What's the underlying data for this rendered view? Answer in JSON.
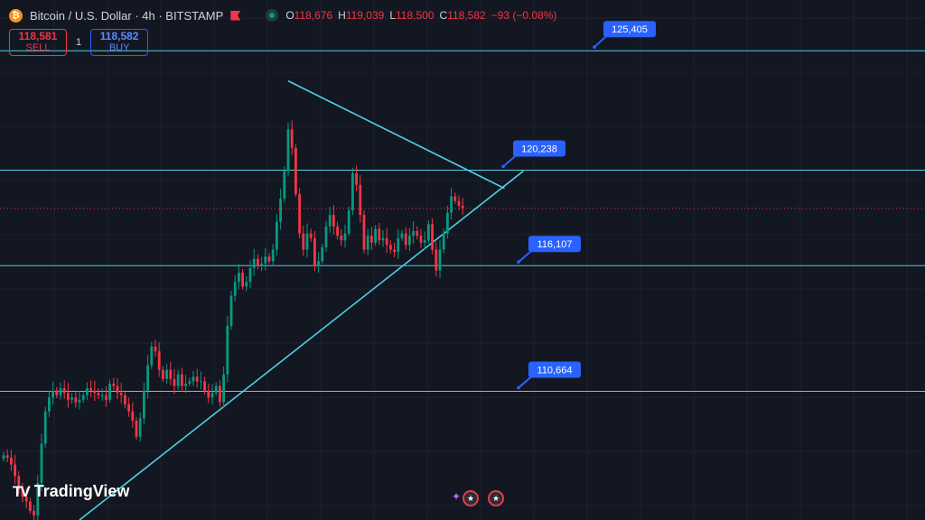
{
  "header": {
    "coin_icon": "₿",
    "symbol_title": "Bitcoin / U.S. Dollar · 4h · BITSTAMP",
    "ohlc": {
      "o_label": "O",
      "o_value": "118,676",
      "h_label": "H",
      "h_value": "119,039",
      "l_label": "L",
      "l_value": "118,500",
      "c_label": "C",
      "c_value": "118,582",
      "change": "−93 (−0.08%)"
    }
  },
  "trade": {
    "sell_price": "118,581",
    "sell_label": "SELL",
    "spread": "1",
    "buy_price": "118,582",
    "buy_label": "BUY"
  },
  "branding": {
    "logo_mark": "TV",
    "logo_text": "TradingView"
  },
  "events": {
    "spark": "✦",
    "flag1": "★",
    "flag2": "★"
  },
  "colors": {
    "background": "#131722",
    "up": "#089981",
    "down": "#f23645",
    "level_line": "#4dd0e1",
    "callout": "#2962ff"
  },
  "chart_data": {
    "type": "candlestick",
    "ylim": [
      105100,
      127600
    ],
    "x_count": 122,
    "levels": [
      {
        "price": 125405,
        "label": "125,405"
      },
      {
        "price": 120238,
        "label": "120,238"
      },
      {
        "price": 116107,
        "label": "116,107"
      },
      {
        "price": 110664,
        "label": "110,664"
      }
    ],
    "current_price": 118582,
    "trendlines": [
      {
        "name": "upper",
        "from": [
          75,
          124100
        ],
        "to": [
          132,
          119450
        ]
      },
      {
        "name": "lower",
        "from": [
          20,
          105100
        ],
        "to": [
          137,
          120200
        ]
      }
    ],
    "closes": [
      107900,
      107800,
      107500,
      107000,
      106400,
      106100,
      105900,
      105500,
      105300,
      106700,
      108400,
      109800,
      110400,
      110700,
      110500,
      110800,
      110600,
      110300,
      110400,
      110200,
      110300,
      110500,
      110800,
      110700,
      110600,
      110500,
      110500,
      110300,
      111000,
      110900,
      110600,
      110500,
      110100,
      109800,
      109400,
      108700,
      109500,
      110700,
      111800,
      112600,
      112400,
      111600,
      111200,
      111600,
      111200,
      110900,
      111400,
      110900,
      111000,
      111100,
      111300,
      111100,
      111100,
      110700,
      110400,
      110600,
      110900,
      110200,
      111400,
      113500,
      114800,
      115400,
      115800,
      115200,
      115400,
      116000,
      116400,
      116100,
      116200,
      116500,
      116300,
      116800,
      118000,
      119000,
      120200,
      122000,
      121200,
      119200,
      117500,
      116800,
      117500,
      117300,
      116100,
      116300,
      116900,
      117800,
      118300,
      117800,
      117400,
      117200,
      117500,
      118500,
      120100,
      119600,
      118300,
      116800,
      117400,
      117100,
      117700,
      117200,
      117300,
      117000,
      116800,
      116700,
      117300,
      117500,
      117000,
      117400,
      117600,
      117400,
      117100,
      117200,
      117900,
      116800,
      115900,
      116800,
      117500,
      118400,
      119100,
      118900,
      118700,
      118582
    ],
    "x_ticks": []
  }
}
